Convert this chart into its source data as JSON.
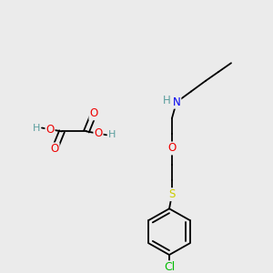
{
  "bg_color": "#ebebeb",
  "atom_colors": {
    "C": "#000000",
    "H": "#5a9e9e",
    "N": "#0000ee",
    "O": "#ee0000",
    "S": "#cccc00",
    "Cl": "#00bb00"
  },
  "bond_color": "#000000",
  "bond_width": 1.3,
  "figsize": [
    3.0,
    3.0
  ],
  "dpi": 100
}
